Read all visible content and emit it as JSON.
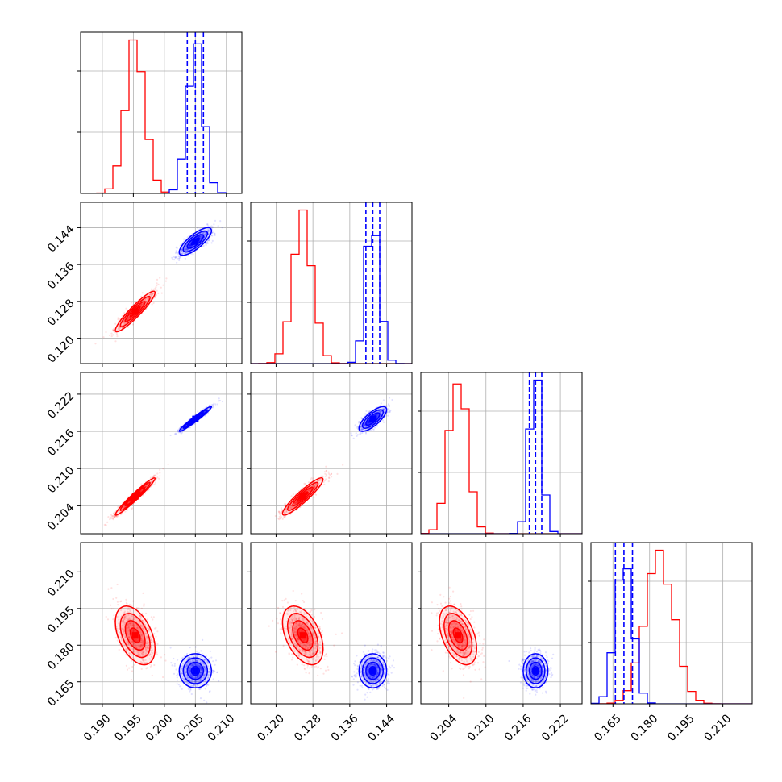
{
  "chart_data": {
    "type": "corner",
    "parameters": [
      {
        "range": [
          0.1865,
          0.2125
        ],
        "ticks": [
          0.19,
          0.195,
          0.2,
          0.205,
          0.21
        ],
        "tick_labels": [
          "0.190",
          "0.195",
          "0.200",
          "0.205",
          "0.210"
        ]
      },
      {
        "range": [
          0.1145,
          0.1495
        ],
        "ticks": [
          0.12,
          0.128,
          0.136,
          0.144
        ],
        "tick_labels": [
          "0.120",
          "0.128",
          "0.136",
          "0.144"
        ]
      },
      {
        "range": [
          0.1995,
          0.2255
        ],
        "ticks": [
          0.204,
          0.21,
          0.216,
          0.222
        ],
        "tick_labels": [
          "0.204",
          "0.210",
          "0.216",
          "0.222"
        ]
      },
      {
        "range": [
          0.156,
          0.222
        ],
        "ticks": [
          0.165,
          0.18,
          0.195,
          0.21
        ],
        "tick_labels": [
          "0.165",
          "0.180",
          "0.195",
          "0.210"
        ]
      }
    ],
    "series": [
      {
        "color": "#ff0000",
        "means": [
          0.1953,
          0.1258,
          0.2055,
          0.184
        ],
        "sigmas": [
          0.0016,
          0.0022,
          0.0015,
          0.006
        ],
        "correlations": [
          [
            0,
            1,
            0.93
          ],
          [
            0,
            2,
            0.97
          ],
          [
            1,
            2,
            0.92
          ],
          [
            0,
            3,
            -0.45
          ],
          [
            1,
            3,
            -0.45
          ],
          [
            2,
            3,
            -0.45
          ]
        ],
        "quantile_lines": false
      },
      {
        "color": "#0000ff",
        "means": [
          0.205,
          0.141,
          0.218,
          0.1695
        ],
        "sigmas": [
          0.0013,
          0.0015,
          0.001,
          0.0035
        ],
        "correlations": [
          [
            0,
            1,
            0.78
          ],
          [
            0,
            2,
            0.97
          ],
          [
            1,
            2,
            0.75
          ],
          [
            0,
            3,
            0.0
          ],
          [
            1,
            3,
            0.0
          ],
          [
            2,
            3,
            0.0
          ]
        ],
        "quantile_lines": true
      }
    ],
    "histogram": {
      "bins": 20
    }
  }
}
